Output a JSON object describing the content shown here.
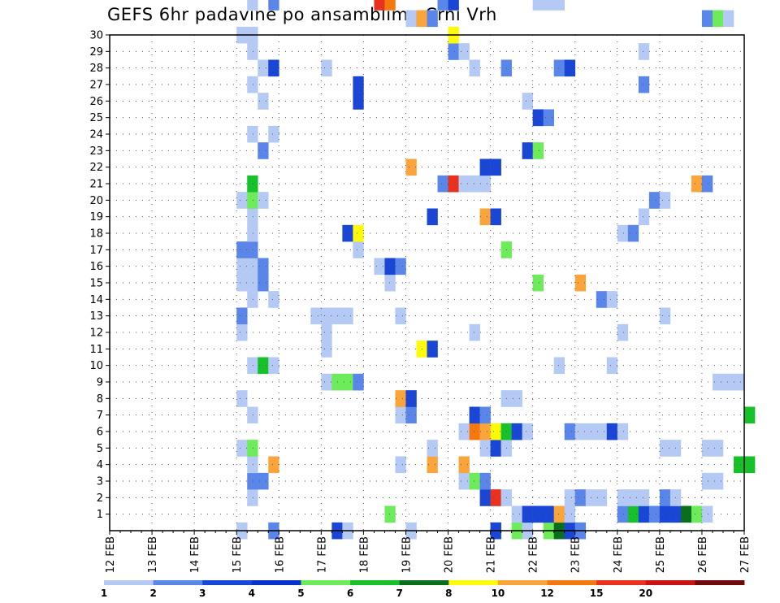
{
  "chart_data": {
    "type": "heatmap",
    "title": "GEFS 6hr padavine po ansamblima Crni Vrh",
    "x_tick_labels": [
      "12 FEB",
      "13 FEB",
      "14 FEB",
      "15 FEB",
      "16 FEB",
      "17 FEB",
      "18 FEB",
      "19 FEB",
      "20 FEB",
      "21 FEB",
      "22 FEB",
      "23 FEB",
      "24 FEB",
      "25 FEB",
      "26 FEB",
      "27 FEB"
    ],
    "x_range_days": [
      12,
      27
    ],
    "y_tick_labels": [
      "1",
      "2",
      "3",
      "4",
      "5",
      "6",
      "7",
      "8",
      "9",
      "10",
      "11",
      "12",
      "13",
      "14",
      "15",
      "16",
      "17",
      "18",
      "19",
      "20",
      "21",
      "22",
      "23",
      "24",
      "25",
      "26",
      "27",
      "28",
      "29",
      "30"
    ],
    "y_range": [
      0,
      30
    ],
    "grid": true,
    "legend_labels": [
      "1",
      "2",
      "3",
      "4",
      "5",
      "6",
      "7",
      "8",
      "10",
      "12",
      "15",
      "20"
    ],
    "legend_colors": [
      "#b5c9f5",
      "#5a86ea",
      "#1a46d6",
      "#0a32c8",
      "#6eeb5a",
      "#17c12a",
      "#0a6e1e",
      "#fffa0a",
      "#faa53c",
      "#f5780f",
      "#e8321e",
      "#c81414",
      "#6e0a0a"
    ],
    "cells": [
      [
        0,
        15.0,
        1
      ],
      [
        0,
        15.75,
        2
      ],
      [
        0,
        17.25,
        3
      ],
      [
        0,
        17.5,
        1
      ],
      [
        0,
        19.0,
        1
      ],
      [
        0,
        21.0,
        3
      ],
      [
        0,
        21.5,
        5
      ],
      [
        0,
        21.75,
        1
      ],
      [
        0,
        22.25,
        5
      ],
      [
        0,
        22.5,
        7
      ],
      [
        0,
        22.75,
        3
      ],
      [
        0,
        23.0,
        2
      ],
      [
        1,
        18.5,
        5
      ],
      [
        1,
        21.5,
        1
      ],
      [
        1,
        21.75,
        3
      ],
      [
        1,
        22.0,
        3
      ],
      [
        1,
        22.25,
        3
      ],
      [
        1,
        22.5,
        10
      ],
      [
        1,
        22.75,
        1
      ],
      [
        1,
        24.0,
        2
      ],
      [
        1,
        24.25,
        6
      ],
      [
        1,
        24.5,
        3
      ],
      [
        1,
        24.75,
        2
      ],
      [
        1,
        25.0,
        3
      ],
      [
        1,
        25.25,
        3
      ],
      [
        1,
        25.5,
        7
      ],
      [
        1,
        25.75,
        5
      ],
      [
        1,
        26.0,
        1
      ],
      [
        2,
        15.25,
        1
      ],
      [
        2,
        20.75,
        3
      ],
      [
        2,
        21.0,
        15
      ],
      [
        2,
        21.25,
        1
      ],
      [
        2,
        22.75,
        1
      ],
      [
        2,
        23.0,
        2
      ],
      [
        2,
        23.25,
        1
      ],
      [
        2,
        23.5,
        1
      ],
      [
        2,
        24.0,
        1
      ],
      [
        2,
        24.25,
        1
      ],
      [
        2,
        24.5,
        1
      ],
      [
        2,
        25.0,
        2
      ],
      [
        2,
        25.25,
        1
      ],
      [
        3,
        15.25,
        2
      ],
      [
        3,
        15.5,
        2
      ],
      [
        3,
        20.25,
        1
      ],
      [
        3,
        20.5,
        5
      ],
      [
        3,
        20.75,
        2
      ],
      [
        3,
        26.0,
        1
      ],
      [
        3,
        26.25,
        1
      ],
      [
        4,
        15.25,
        1
      ],
      [
        4,
        15.75,
        10
      ],
      [
        4,
        18.75,
        1
      ],
      [
        4,
        19.5,
        10
      ],
      [
        4,
        20.25,
        10
      ],
      [
        4,
        26.75,
        6
      ],
      [
        4,
        27.0,
        6
      ],
      [
        5,
        15.0,
        1
      ],
      [
        5,
        15.25,
        5
      ],
      [
        5,
        19.5,
        1
      ],
      [
        5,
        20.75,
        1
      ],
      [
        5,
        21.0,
        3
      ],
      [
        5,
        21.25,
        1
      ],
      [
        5,
        25.0,
        1
      ],
      [
        5,
        25.25,
        1
      ],
      [
        5,
        26.0,
        1
      ],
      [
        5,
        26.25,
        1
      ],
      [
        6,
        20.25,
        1
      ],
      [
        6,
        20.5,
        12
      ],
      [
        6,
        20.75,
        10
      ],
      [
        6,
        21.0,
        8
      ],
      [
        6,
        21.25,
        6
      ],
      [
        6,
        21.5,
        3
      ],
      [
        6,
        21.75,
        1
      ],
      [
        6,
        22.75,
        2
      ],
      [
        6,
        23.0,
        1
      ],
      [
        6,
        23.25,
        1
      ],
      [
        6,
        23.5,
        1
      ],
      [
        6,
        23.75,
        3
      ],
      [
        6,
        24.0,
        1
      ],
      [
        7,
        15.25,
        1
      ],
      [
        7,
        18.75,
        1
      ],
      [
        7,
        19.0,
        2
      ],
      [
        7,
        20.5,
        3
      ],
      [
        7,
        20.75,
        2
      ],
      [
        7,
        27.0,
        6
      ],
      [
        8,
        15.0,
        1
      ],
      [
        8,
        18.75,
        10
      ],
      [
        8,
        19.0,
        3
      ],
      [
        8,
        21.25,
        1
      ],
      [
        8,
        21.5,
        1
      ],
      [
        9,
        17.0,
        1
      ],
      [
        9,
        17.25,
        5
      ],
      [
        9,
        17.5,
        5
      ],
      [
        9,
        17.75,
        2
      ],
      [
        9,
        26.25,
        1
      ],
      [
        9,
        26.5,
        1
      ],
      [
        9,
        26.75,
        1
      ],
      [
        10,
        15.25,
        1
      ],
      [
        10,
        15.5,
        6
      ],
      [
        10,
        15.75,
        1
      ],
      [
        10,
        22.5,
        1
      ],
      [
        10,
        23.75,
        1
      ],
      [
        11,
        17.0,
        1
      ],
      [
        11,
        19.25,
        8
      ],
      [
        11,
        19.5,
        3
      ],
      [
        12,
        15.0,
        1
      ],
      [
        12,
        17.0,
        1
      ],
      [
        12,
        20.5,
        1
      ],
      [
        12,
        24.0,
        1
      ],
      [
        13,
        15.0,
        2
      ],
      [
        13,
        16.75,
        1
      ],
      [
        13,
        17.0,
        1
      ],
      [
        13,
        17.25,
        1
      ],
      [
        13,
        17.5,
        1
      ],
      [
        13,
        18.75,
        1
      ],
      [
        13,
        25.0,
        1
      ],
      [
        14,
        15.25,
        1
      ],
      [
        14,
        15.75,
        1
      ],
      [
        14,
        23.5,
        2
      ],
      [
        14,
        23.75,
        1
      ],
      [
        15,
        15.0,
        1
      ],
      [
        15,
        15.25,
        1
      ],
      [
        15,
        15.5,
        2
      ],
      [
        15,
        18.5,
        1
      ],
      [
        15,
        22.0,
        5
      ],
      [
        15,
        23.0,
        10
      ],
      [
        16,
        15.0,
        1
      ],
      [
        16,
        15.25,
        1
      ],
      [
        16,
        15.5,
        2
      ],
      [
        16,
        18.25,
        1
      ],
      [
        16,
        18.5,
        3
      ],
      [
        16,
        18.75,
        2
      ],
      [
        17,
        15.0,
        2
      ],
      [
        17,
        15.25,
        2
      ],
      [
        17,
        17.75,
        1
      ],
      [
        17,
        21.25,
        5
      ],
      [
        18,
        15.25,
        1
      ],
      [
        18,
        17.5,
        3
      ],
      [
        18,
        17.75,
        8
      ],
      [
        18,
        24.0,
        1
      ],
      [
        18,
        24.25,
        2
      ],
      [
        19,
        15.25,
        1
      ],
      [
        19,
        19.5,
        3
      ],
      [
        19,
        20.75,
        10
      ],
      [
        19,
        21.0,
        3
      ],
      [
        19,
        24.5,
        1
      ],
      [
        20,
        15.0,
        1
      ],
      [
        20,
        15.25,
        5
      ],
      [
        20,
        15.5,
        1
      ],
      [
        20,
        24.75,
        2
      ],
      [
        20,
        25.0,
        1
      ],
      [
        21,
        15.25,
        6
      ],
      [
        21,
        19.75,
        2
      ],
      [
        21,
        20.0,
        15
      ],
      [
        21,
        20.25,
        1
      ],
      [
        21,
        20.5,
        1
      ],
      [
        21,
        20.75,
        1
      ],
      [
        21,
        25.75,
        10
      ],
      [
        21,
        26.0,
        2
      ],
      [
        22,
        19.0,
        10
      ],
      [
        22,
        20.75,
        3
      ],
      [
        22,
        21.0,
        3
      ],
      [
        23,
        15.5,
        2
      ],
      [
        23,
        21.75,
        3
      ],
      [
        23,
        22.0,
        5
      ],
      [
        24,
        15.25,
        1
      ],
      [
        24,
        15.75,
        1
      ],
      [
        25,
        22.0,
        3
      ],
      [
        25,
        22.25,
        2
      ],
      [
        26,
        15.5,
        1
      ],
      [
        26,
        17.75,
        3
      ],
      [
        26,
        21.75,
        1
      ],
      [
        27,
        15.25,
        1
      ],
      [
        27,
        17.75,
        3
      ],
      [
        27,
        24.5,
        2
      ],
      [
        28,
        15.5,
        1
      ],
      [
        28,
        15.75,
        3
      ],
      [
        28,
        17.0,
        1
      ],
      [
        28,
        20.5,
        1
      ],
      [
        28,
        21.25,
        2
      ],
      [
        28,
        22.5,
        2
      ],
      [
        28,
        22.75,
        3
      ],
      [
        29,
        15.25,
        1
      ],
      [
        29,
        20.0,
        2
      ],
      [
        29,
        20.25,
        1
      ],
      [
        29,
        24.5,
        1
      ],
      [
        30,
        15.0,
        1
      ],
      [
        30,
        15.25,
        1
      ],
      [
        30,
        20.0,
        8
      ],
      [
        31,
        19.0,
        1
      ],
      [
        31,
        19.25,
        10
      ],
      [
        31,
        19.5,
        2
      ],
      [
        31,
        26.0,
        2
      ],
      [
        31,
        26.25,
        5
      ],
      [
        31,
        26.5,
        1
      ],
      [
        32,
        15.25,
        1
      ],
      [
        32,
        15.75,
        2
      ],
      [
        32,
        18.25,
        15
      ],
      [
        32,
        18.5,
        12
      ],
      [
        32,
        19.75,
        2
      ],
      [
        32,
        20.0,
        3
      ],
      [
        32,
        22.0,
        1
      ],
      [
        32,
        22.25,
        1
      ],
      [
        32,
        22.5,
        1
      ]
    ]
  }
}
